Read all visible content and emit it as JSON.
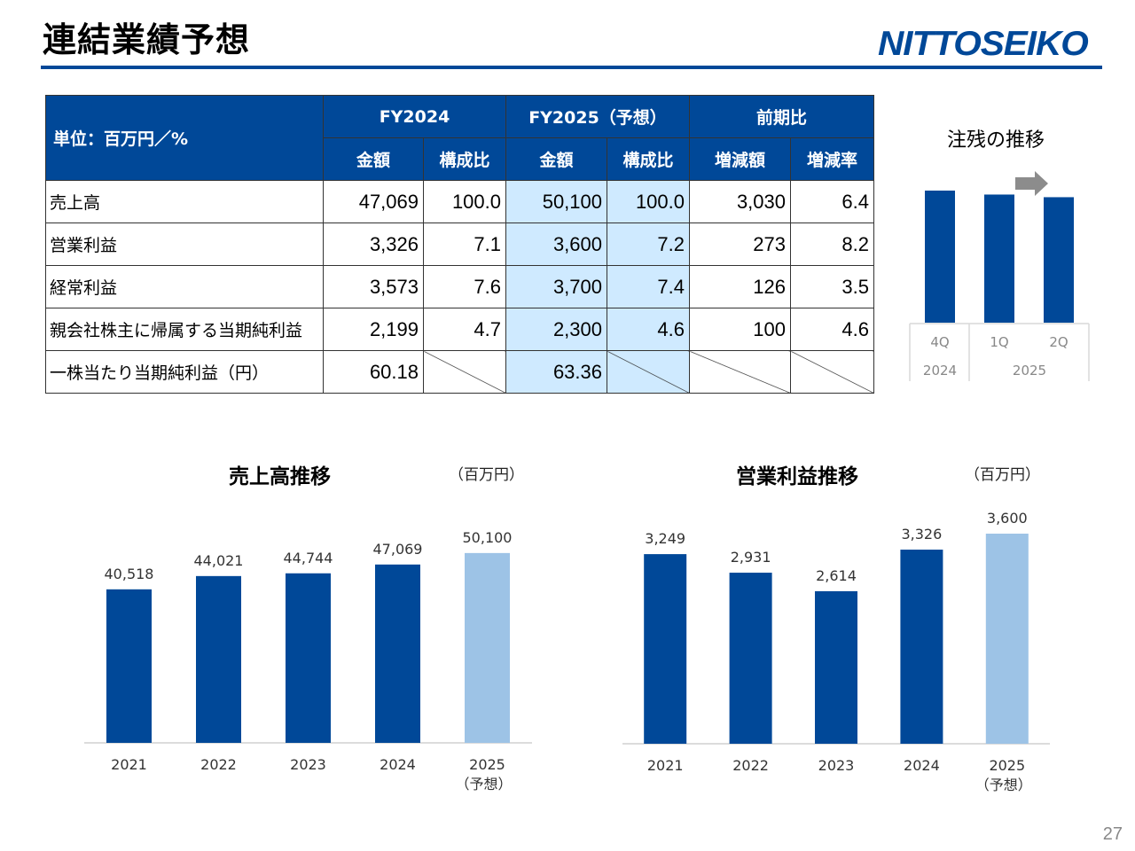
{
  "page": {
    "title": "連結業績予想",
    "logo_text": "NITTOSEIKO",
    "page_number": "27",
    "colors": {
      "navy": "#004898",
      "light_blue": "#9dc3e6",
      "highlight": "#cfeaff",
      "header_blue": "#004898"
    }
  },
  "table": {
    "unit_label": "単位：百万円／%",
    "groups": [
      "FY2024",
      "FY2025（予想）",
      "前期比"
    ],
    "subheaders": [
      "金額",
      "構成比",
      "金額",
      "構成比",
      "増減額",
      "増減率"
    ],
    "rows": [
      {
        "label": "売上高",
        "values": [
          "47,069",
          "100.0",
          "50,100",
          "100.0",
          "3,030",
          "6.4"
        ]
      },
      {
        "label": "営業利益",
        "values": [
          "3,326",
          "7.1",
          "3,600",
          "7.2",
          "273",
          "8.2"
        ]
      },
      {
        "label": "経常利益",
        "values": [
          "3,573",
          "7.6",
          "3,700",
          "7.4",
          "126",
          "3.5"
        ]
      },
      {
        "label": "親会社株主に帰属する当期純利益",
        "values": [
          "2,199",
          "4.7",
          "2,300",
          "4.6",
          "100",
          "4.6"
        ]
      },
      {
        "label": "一株当たり当期純利益（円）",
        "values": [
          "60.18",
          "",
          "63.36",
          "",
          "",
          ""
        ]
      }
    ]
  },
  "chart_data": [
    {
      "type": "bar",
      "title": "注残の推移",
      "categories": [
        "4Q",
        "1Q",
        "2Q"
      ],
      "group_labels": [
        "2024",
        "2025"
      ],
      "values": [
        100,
        97,
        95
      ],
      "annotations": [
        "arrow-right-icon"
      ]
    },
    {
      "type": "bar",
      "title": "売上高推移",
      "unit": "（百万円）",
      "categories": [
        "2021",
        "2022",
        "2023",
        "2024",
        "2025"
      ],
      "category_notes": [
        "",
        "",
        "",
        "",
        "（予想）"
      ],
      "values": [
        40518,
        44021,
        44744,
        47069,
        50100
      ],
      "value_labels": [
        "40,518",
        "44,021",
        "44,744",
        "47,069",
        "50,100"
      ],
      "forecast_index": 4,
      "ylim": [
        0,
        62000
      ]
    },
    {
      "type": "bar",
      "title": "営業利益推移",
      "unit": "（百万円）",
      "categories": [
        "2021",
        "2022",
        "2023",
        "2024",
        "2025"
      ],
      "category_notes": [
        "",
        "",
        "",
        "",
        "（予想）"
      ],
      "values": [
        3249,
        2931,
        2614,
        3326,
        3600
      ],
      "value_labels": [
        "3,249",
        "2,931",
        "2,614",
        "3,326",
        "3,600"
      ],
      "forecast_index": 4,
      "ylim": [
        0,
        3600
      ]
    }
  ]
}
